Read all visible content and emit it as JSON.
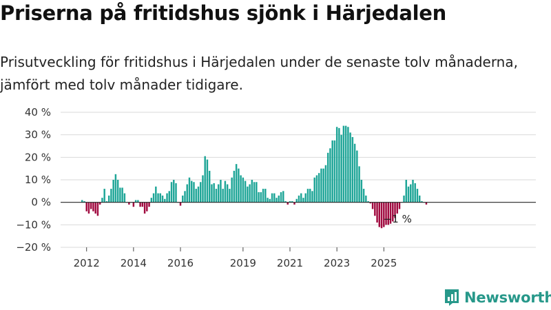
{
  "title": "Priserna på fritidshus sjönk i Härjedalen",
  "subtitle": "Prisutveckling för fritidshus i Härjedalen under de senaste tolv månaderna, jämfört med tolv månader tidigare.",
  "brand": "Newsworthy",
  "colors": {
    "positive": "#1ea597",
    "negative": "#a0093f",
    "grid": "#d9d9d9",
    "brand": "#27988a"
  },
  "chart_data": {
    "type": "bar",
    "title": "Priserna på fritidshus sjönk i Härjedalen",
    "xlabel": "",
    "ylabel": "",
    "ylim": [
      -20,
      40
    ],
    "y_ticks": [
      40,
      30,
      20,
      10,
      0,
      -10,
      -20
    ],
    "y_tick_labels": [
      "40 %",
      "30 %",
      "20 %",
      "10 %",
      "0 %",
      "−10 %",
      "−20 %"
    ],
    "x_tick_labels": [
      "2012",
      "2014",
      "2016",
      "2019",
      "2021",
      "2023",
      "2025"
    ],
    "x_tick_indices": [
      2,
      23,
      44,
      72,
      93,
      114,
      135
    ],
    "grid": true,
    "annotation": {
      "text": "−1 %",
      "index": 143
    },
    "x_start": "2012-01",
    "values": [
      1,
      0.5,
      -4,
      -5,
      -3,
      -4,
      -5,
      -6,
      -1,
      2,
      6,
      0.5,
      3,
      6,
      10,
      12.5,
      10,
      6.5,
      6.5,
      4,
      0,
      -1,
      0,
      -2,
      1,
      1,
      -2,
      -2,
      -5,
      -4,
      -2,
      2,
      4,
      7,
      4,
      4,
      3,
      1.5,
      4,
      5,
      9,
      10,
      8.5,
      0,
      -1.5,
      3,
      5,
      8,
      11,
      9.5,
      9,
      6,
      7,
      9,
      12,
      20.5,
      19,
      14,
      8,
      8.5,
      6,
      8,
      10,
      6,
      9.5,
      8,
      6,
      11,
      14,
      17,
      15,
      12,
      11,
      9.5,
      7,
      8,
      10,
      9,
      9,
      4.5,
      4.5,
      6,
      6,
      2,
      1.5,
      4,
      4,
      2,
      3,
      4.5,
      5,
      0.5,
      -1,
      0.5,
      0.5,
      -1,
      1.5,
      3,
      4,
      2,
      4,
      6,
      6,
      5,
      11,
      12,
      13,
      15,
      15,
      16.5,
      22,
      24,
      27.5,
      27.5,
      33.5,
      33,
      30,
      34,
      34,
      33.5,
      31,
      29,
      26,
      23,
      16,
      10,
      6,
      3,
      0.5,
      -0.5,
      -3,
      -6,
      -9,
      -11,
      -11.5,
      -11,
      -10,
      -10,
      -9.5,
      -8.5,
      -7,
      -5,
      -3,
      0,
      3,
      10,
      7,
      8,
      10,
      8.5,
      6,
      3,
      0.5,
      0,
      -1
    ]
  }
}
